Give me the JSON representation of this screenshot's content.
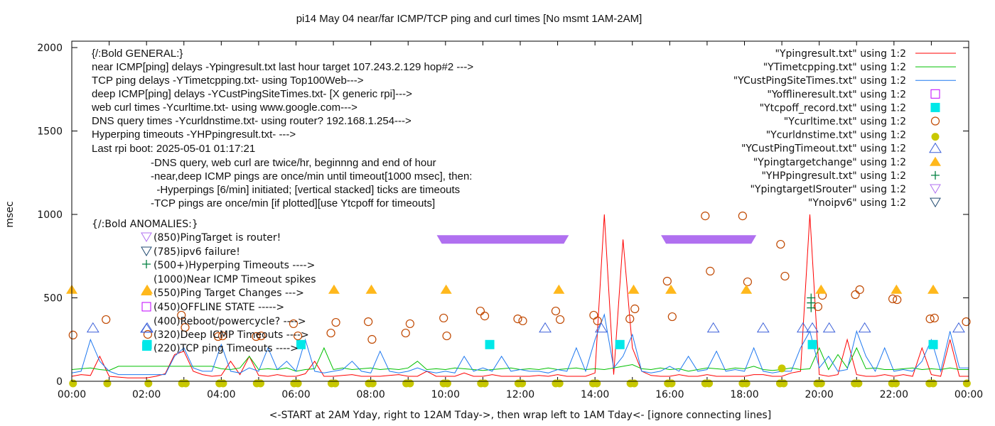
{
  "chart_data": {
    "type": "line",
    "title": "pi14 May 04  near/far ICMP/TCP ping and curl times [No msmt 1AM-2AM]",
    "xlabel": "<-START at 2AM Yday, right to 12AM Tday->, then wrap left to 1AM Tday<- [ignore connecting lines]",
    "ylabel": "msec",
    "xlim": [
      "00:00",
      "24:00"
    ],
    "ylim": [
      0,
      2050
    ],
    "x_tick_labels": [
      "00:00",
      "02:00",
      "04:00",
      "06:00",
      "08:00",
      "10:00",
      "12:00",
      "14:00",
      "16:00",
      "18:00",
      "20:00",
      "22:00",
      "00:00"
    ],
    "y_tick_labels": [
      "0",
      "500",
      "1000",
      "1500",
      "2000"
    ],
    "y_ticks": [
      0,
      500,
      1000,
      1500,
      2000
    ],
    "grid": false,
    "legend_placement": "top-right",
    "line_x": [
      "00:00",
      "00:15",
      "00:30",
      "00:45",
      "01:00",
      "01:15",
      "01:30",
      "01:45",
      "02:00",
      "02:15",
      "02:30",
      "02:45",
      "03:00",
      "03:15",
      "03:30",
      "03:45",
      "04:00",
      "04:15",
      "04:30",
      "04:45",
      "05:00",
      "05:15",
      "05:30",
      "05:45",
      "06:00",
      "06:15",
      "06:30",
      "06:45",
      "07:00",
      "07:15",
      "07:30",
      "07:45",
      "08:00",
      "08:15",
      "08:30",
      "08:45",
      "09:00",
      "09:15",
      "09:30",
      "09:45",
      "10:00",
      "10:15",
      "10:30",
      "10:45",
      "11:00",
      "11:15",
      "11:30",
      "11:45",
      "12:00",
      "12:15",
      "12:30",
      "12:45",
      "13:00",
      "13:15",
      "13:30",
      "13:45",
      "14:00",
      "14:15",
      "14:30",
      "14:45",
      "15:00",
      "15:15",
      "15:30",
      "15:45",
      "16:00",
      "16:15",
      "16:30",
      "16:45",
      "17:00",
      "17:15",
      "17:30",
      "17:45",
      "18:00",
      "18:15",
      "18:30",
      "18:45",
      "19:00",
      "19:15",
      "19:30",
      "19:45",
      "20:00",
      "20:15",
      "20:30",
      "20:45",
      "21:00",
      "21:15",
      "21:30",
      "21:45",
      "22:00",
      "22:15",
      "22:30",
      "22:45",
      "23:00",
      "23:15",
      "23:30",
      "23:45"
    ],
    "series": [
      {
        "name": "\"Ypingresult.txt\" using 1:2",
        "color": "#ff0000",
        "kind": "line",
        "values": [
          30,
          40,
          35,
          150,
          30,
          25,
          20,
          20,
          20,
          30,
          45,
          160,
          180,
          60,
          40,
          30,
          35,
          120,
          40,
          150,
          35,
          30,
          40,
          30,
          30,
          45,
          120,
          30,
          30,
          35,
          40,
          30,
          30,
          30,
          35,
          40,
          30,
          30,
          60,
          30,
          30,
          30,
          50,
          30,
          30,
          40,
          30,
          30,
          30,
          30,
          35,
          30,
          40,
          30,
          30,
          30,
          50,
          1000,
          40,
          850,
          200,
          60,
          35,
          30,
          30,
          40,
          30,
          30,
          40,
          30,
          30,
          30,
          30,
          40,
          40,
          30,
          30,
          50,
          60,
          1000,
          40,
          30,
          40,
          250,
          40,
          30,
          30,
          40,
          30,
          40,
          30,
          200,
          40,
          30,
          250,
          30
        ]
      },
      {
        "name": "\"YTimetcpping.txt\" using 1:2",
        "color": "#00c000",
        "kind": "line",
        "values": [
          70,
          75,
          80,
          70,
          65,
          90,
          90,
          90,
          90,
          90,
          90,
          90,
          90,
          90,
          90,
          90,
          75,
          70,
          80,
          150,
          70,
          75,
          70,
          80,
          60,
          70,
          75,
          200,
          70,
          80,
          70,
          75,
          80,
          70,
          75,
          70,
          80,
          120,
          70,
          75,
          70,
          80,
          75,
          70,
          65,
          70,
          75,
          80,
          70,
          75,
          70,
          80,
          70,
          75,
          80,
          70,
          75,
          70,
          80,
          90,
          100,
          75,
          70,
          80,
          70,
          75,
          60,
          70,
          80,
          75,
          70,
          80,
          75,
          90,
          70,
          65,
          70,
          80,
          70,
          75,
          200,
          70,
          160,
          80,
          200,
          75,
          80,
          70,
          70,
          75,
          80,
          70,
          75,
          70,
          80,
          70
        ]
      },
      {
        "name": "\"YCustPingSiteTimes.txt\" using 1:2",
        "color": "#1e78f0",
        "kind": "line",
        "values": [
          50,
          60,
          250,
          120,
          60,
          40,
          40,
          40,
          40,
          40,
          40,
          150,
          200,
          80,
          60,
          60,
          220,
          60,
          50,
          80,
          60,
          200,
          70,
          120,
          60,
          250,
          60,
          50,
          60,
          70,
          120,
          60,
          50,
          180,
          60,
          50,
          60,
          80,
          60,
          50,
          60,
          50,
          150,
          60,
          80,
          60,
          150,
          60,
          70,
          60,
          60,
          50,
          70,
          60,
          200,
          60,
          250,
          400,
          80,
          150,
          280,
          60,
          50,
          60,
          90,
          60,
          150,
          60,
          70,
          180,
          60,
          70,
          60,
          200,
          60,
          50,
          60,
          60,
          200,
          300,
          80,
          150,
          60,
          70,
          300,
          150,
          60,
          200,
          60,
          70,
          60,
          120,
          250,
          60,
          300,
          80
        ]
      },
      {
        "name": "\"Yofflineresult.txt\" using 1:2",
        "color": "#c000ff",
        "kind": "open-square",
        "points": []
      },
      {
        "name": "\"Ytcpoff_record.txt\" using 1:2",
        "color": "#00e8e8",
        "kind": "filled-square",
        "points": [
          [
            "02:01",
            220
          ],
          [
            "06:08",
            220
          ],
          [
            "11:11",
            220
          ],
          [
            "14:40",
            220
          ],
          [
            "19:49",
            220
          ],
          [
            "23:03",
            220
          ]
        ]
      },
      {
        "name": "\"Ycurltime.txt\" using 1:2",
        "color": "#c04800",
        "kind": "open-circle",
        "points": [
          [
            "00:02",
            277
          ],
          [
            "00:55",
            370
          ],
          [
            "02:02",
            281
          ],
          [
            "02:56",
            396
          ],
          [
            "03:02",
            323
          ],
          [
            "03:55",
            268
          ],
          [
            "04:02",
            272
          ],
          [
            "04:56",
            268
          ],
          [
            "05:04",
            272
          ],
          [
            "05:56",
            345
          ],
          [
            "06:03",
            272
          ],
          [
            "06:56",
            289
          ],
          [
            "07:04",
            353
          ],
          [
            "07:56",
            357
          ],
          [
            "08:02",
            251
          ],
          [
            "08:56",
            289
          ],
          [
            "09:03",
            345
          ],
          [
            "09:57",
            379
          ],
          [
            "10:02",
            272
          ],
          [
            "10:56",
            421
          ],
          [
            "11:03",
            391
          ],
          [
            "11:56",
            374
          ],
          [
            "12:04",
            362
          ],
          [
            "12:57",
            421
          ],
          [
            "13:04",
            370
          ],
          [
            "13:58",
            396
          ],
          [
            "14:04",
            362
          ],
          [
            "14:56",
            374
          ],
          [
            "15:04",
            434
          ],
          [
            "15:56",
            600
          ],
          [
            "16:04",
            387
          ],
          [
            "16:57",
            991
          ],
          [
            "17:05",
            660
          ],
          [
            "17:57",
            991
          ],
          [
            "18:05",
            596
          ],
          [
            "18:58",
            821
          ],
          [
            "19:05",
            630
          ],
          [
            "19:58",
            447
          ],
          [
            "20:05",
            515
          ],
          [
            "20:58",
            519
          ],
          [
            "21:05",
            549
          ],
          [
            "21:58",
            494
          ],
          [
            "22:05",
            489
          ],
          [
            "22:58",
            374
          ],
          [
            "23:05",
            379
          ],
          [
            "23:56",
            357
          ]
        ]
      },
      {
        "name": "\"Ycurldnstime.txt\" using 1:2",
        "color": "#c8c800",
        "kind": "filled-circle",
        "points": [
          [
            "00:02",
            0
          ],
          [
            "00:57",
            0
          ],
          [
            "02:03",
            0
          ],
          [
            "02:57",
            0
          ],
          [
            "03:03",
            0
          ],
          [
            "03:57",
            0
          ],
          [
            "04:03",
            0
          ],
          [
            "04:57",
            0
          ],
          [
            "05:03",
            0
          ],
          [
            "05:57",
            0
          ],
          [
            "06:03",
            0
          ],
          [
            "06:57",
            0
          ],
          [
            "07:03",
            0
          ],
          [
            "07:57",
            0
          ],
          [
            "08:03",
            0
          ],
          [
            "08:57",
            0
          ],
          [
            "09:03",
            0
          ],
          [
            "09:57",
            0
          ],
          [
            "10:03",
            0
          ],
          [
            "10:57",
            0
          ],
          [
            "11:03",
            0
          ],
          [
            "11:57",
            0
          ],
          [
            "12:03",
            0
          ],
          [
            "12:57",
            0
          ],
          [
            "13:03",
            0
          ],
          [
            "13:57",
            0
          ],
          [
            "14:03",
            0
          ],
          [
            "14:57",
            0
          ],
          [
            "15:03",
            0
          ],
          [
            "15:57",
            0
          ],
          [
            "16:03",
            0
          ],
          [
            "16:57",
            0
          ],
          [
            "17:03",
            0
          ],
          [
            "17:57",
            0
          ],
          [
            "18:03",
            0
          ],
          [
            "18:57",
            0
          ],
          [
            "19:00",
            90
          ],
          [
            "19:03",
            0
          ],
          [
            "19:57",
            0
          ],
          [
            "20:03",
            0
          ],
          [
            "20:57",
            0
          ],
          [
            "21:03",
            0
          ],
          [
            "21:57",
            0
          ],
          [
            "22:03",
            0
          ],
          [
            "22:57",
            0
          ],
          [
            "23:03",
            0
          ],
          [
            "23:57",
            0
          ]
        ]
      },
      {
        "name": "\"YCustPingTimeout.txt\" using 1:2",
        "color": "#3a5fd9",
        "kind": "open-triangle-up",
        "points": [
          [
            "00:34",
            320
          ],
          [
            "02:01",
            320
          ],
          [
            "12:40",
            320
          ],
          [
            "14:10",
            320
          ],
          [
            "17:10",
            320
          ],
          [
            "18:30",
            320
          ],
          [
            "19:34",
            320
          ],
          [
            "19:49",
            320
          ],
          [
            "20:16",
            320
          ],
          [
            "21:13",
            320
          ],
          [
            "23:44",
            320
          ]
        ]
      },
      {
        "name": "\"Ypingtargetchange\" using 1:2",
        "color": "#ffb81c",
        "kind": "filled-triangle-up",
        "points": [
          [
            "00:00",
            550
          ],
          [
            "02:01",
            550
          ],
          [
            "07:01",
            550
          ],
          [
            "08:01",
            550
          ],
          [
            "10:01",
            550
          ],
          [
            "13:02",
            550
          ],
          [
            "15:02",
            550
          ],
          [
            "16:02",
            550
          ],
          [
            "18:03",
            550
          ],
          [
            "20:03",
            550
          ],
          [
            "22:04",
            550
          ],
          [
            "23:03",
            550
          ]
        ]
      },
      {
        "name": "\"YHPpingresult.txt\" using 1:2",
        "color": "#008040",
        "kind": "cross",
        "points": [
          [
            "19:47",
            500
          ],
          [
            "19:47",
            470
          ],
          [
            "19:47",
            440
          ]
        ]
      },
      {
        "name": "\"YpingtargetISrouter\" using 1:2",
        "color": "#b070f0",
        "kind": "open-triangle-down",
        "ranges": [
          [
            "09:54",
            "13:10",
            850
          ],
          [
            "15:54",
            "18:11",
            850
          ]
        ]
      },
      {
        "name": "\"Ynoipv6\" using 1:2",
        "color": "#204a70",
        "kind": "open-triangle-down",
        "points": []
      }
    ]
  },
  "annotations": {
    "general": {
      "heading": "{/:Bold GENERAL:}",
      "lines": [
        "near ICMP[ping] delays -Ypingresult.txt last hour target 107.243.2.129 hop#2 --->",
        "TCP ping delays -YTimetcpping.txt- using Top100Web--->",
        "deep ICMP[ping] delays -YCustPingSiteTimes.txt- [X generic rpi]--->",
        "web curl times -Ycurltime.txt- using www.google.com--->",
        "DNS query times -Ycurldnstime.txt- using router? 192.168.1.254--->",
        "Hyperping timeouts -YHPpingresult.txt- --->",
        "Last rpi boot: 2025-05-01 01:17:21"
      ],
      "notes": [
        "-DNS query, web curl are twice/hr, beginnng and end of hour",
        "-near,deep ICMP pings are once/min until timeout[1000 msec], then:",
        "  -Hyperpings [6/min] initiated; [vertical stacked] ticks are timeouts",
        "-TCP pings are once/min [if plotted][use Ytcpoff for timeouts]"
      ]
    },
    "anomalies": {
      "heading": "{/:Bold ANOMALIES:}",
      "items": [
        {
          "marker": "router-triangle",
          "text": "(850)PingTarget is router!"
        },
        {
          "marker": "ipv6-triangle",
          "text": "(785)ipv6 failure!"
        },
        {
          "marker": "hyperping-cross",
          "text": "(500+)Hyperping Timeouts ---->"
        },
        {
          "marker": "none",
          "text": "(1000)Near ICMP Timeout spikes"
        },
        {
          "marker": "target-triangle",
          "text": "(550)Ping Target Changes --->"
        },
        {
          "marker": "offline-square",
          "text": "(450)OFFLINE STATE ----->"
        },
        {
          "marker": "none",
          "text": "(400)Reboot/powercycle? ---->"
        },
        {
          "marker": "custping-triangle",
          "text": "(320)Deep ICMP Timeouts ---->"
        },
        {
          "marker": "tcpoff-square",
          "text": "(220)TCP ping Timeouts ---->"
        }
      ]
    }
  }
}
